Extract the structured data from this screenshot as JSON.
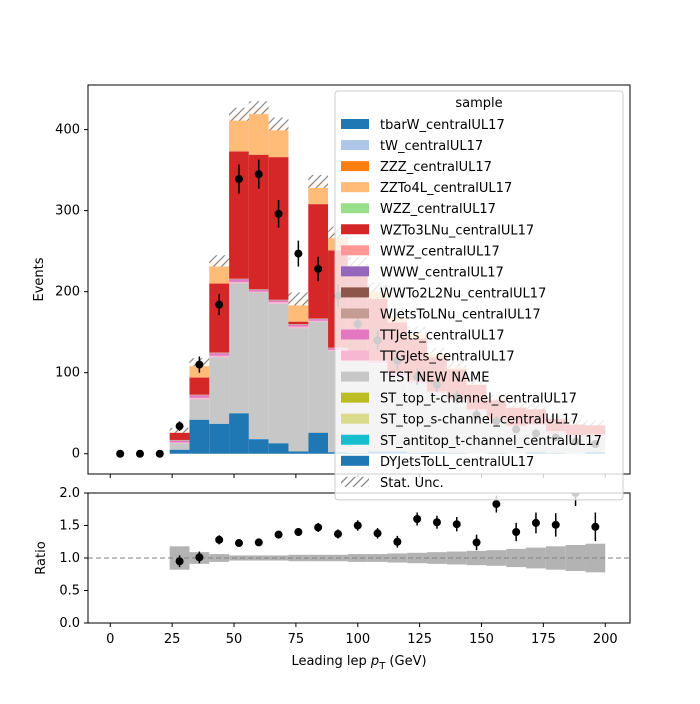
{
  "chart_data": [
    {
      "type": "bar",
      "stacked": true,
      "bin_edges": [
        0,
        8,
        16,
        24,
        32,
        40,
        48,
        56,
        64,
        72,
        80,
        88,
        96,
        104,
        112,
        120,
        128,
        136,
        144,
        152,
        160,
        168,
        176,
        184,
        192,
        200
      ],
      "xlim": [
        -9,
        210
      ],
      "ylim": [
        -25,
        455
      ],
      "ylabel": "Events",
      "yticks": [
        0,
        100,
        200,
        300,
        400
      ],
      "legend": {
        "title": "sample",
        "position": "top-right",
        "entries": [
          {
            "name": "tbarW_centralUL17",
            "color": "#1f77b4"
          },
          {
            "name": "tW_centralUL17",
            "color": "#aec7e8"
          },
          {
            "name": "ZZZ_centralUL17",
            "color": "#ff7f0e"
          },
          {
            "name": "ZZTo4L_centralUL17",
            "color": "#ffbb78"
          },
          {
            "name": "WZZ_centralUL17",
            "color": "#98df8a"
          },
          {
            "name": "WZTo3LNu_centralUL17",
            "color": "#d62728"
          },
          {
            "name": "WWZ_centralUL17",
            "color": "#ff9896"
          },
          {
            "name": "WWW_centralUL17",
            "color": "#9467bd"
          },
          {
            "name": "WWTo2L2Nu_centralUL17",
            "color": "#8c564b"
          },
          {
            "name": "WJetsToLNu_centralUL17",
            "color": "#c49c94"
          },
          {
            "name": "TTJets_centralUL17",
            "color": "#e377c2"
          },
          {
            "name": "TTGJets_centralUL17",
            "color": "#f7b6d2"
          },
          {
            "name": "TEST NEW NAME",
            "color": "#c7c7c7"
          },
          {
            "name": "ST_top_t-channel_centralUL17",
            "color": "#bcbd22"
          },
          {
            "name": "ST_top_s-channel_centralUL17",
            "color": "#dbdb8d"
          },
          {
            "name": "ST_antitop_t-channel_centralUL17",
            "color": "#17becf"
          },
          {
            "name": "DYJetsToLL_centralUL17",
            "color": "#1f77b4"
          },
          {
            "name": "Stat. Unc.",
            "color": "#808080",
            "hatch": true
          }
        ]
      },
      "stack_series": [
        {
          "name": "DYJetsToLL_centralUL17",
          "color": "#1f77b4",
          "values": [
            0,
            0,
            0,
            5,
            42,
            37,
            50,
            18,
            13,
            3,
            26,
            2,
            1,
            3,
            3,
            1,
            2,
            1,
            0,
            1,
            0,
            2,
            1,
            0,
            2
          ]
        },
        {
          "name": "TEST NEW NAME",
          "color": "#c7c7c7",
          "values": [
            0,
            0,
            0,
            8,
            25,
            82,
            160,
            181,
            172,
            152,
            137,
            125,
            118,
            108,
            93,
            85,
            72,
            64,
            52,
            38,
            32,
            32,
            24,
            20,
            19
          ]
        },
        {
          "name": "TTGJets_centralUL17",
          "color": "#f7b6d2",
          "values": [
            0,
            0,
            0,
            1,
            2,
            2,
            2,
            1,
            2,
            2,
            1,
            1,
            1,
            1,
            1,
            1,
            1,
            1,
            1,
            1,
            1,
            1,
            1,
            1,
            1
          ]
        },
        {
          "name": "TTJets_centralUL17",
          "color": "#e377c2",
          "values": [
            0,
            0,
            0,
            2,
            3,
            3,
            3,
            2,
            2,
            2,
            2,
            2,
            2,
            2,
            2,
            2,
            1,
            1,
            1,
            1,
            1,
            1,
            1,
            1,
            1
          ]
        },
        {
          "name": "WJetsToLNu_centralUL17",
          "color": "#c49c94",
          "values": [
            0,
            0,
            0,
            1,
            1,
            1,
            1,
            1,
            1,
            1,
            1,
            1,
            1,
            1,
            1,
            1,
            1,
            1,
            1,
            1,
            1,
            1,
            1,
            1,
            1
          ]
        },
        {
          "name": "WZTo3LNu_centralUL17",
          "color": "#d62728",
          "values": [
            0,
            0,
            0,
            9,
            21,
            85,
            157,
            166,
            176,
            3,
            141,
            120,
            96,
            76,
            62,
            52,
            42,
            36,
            30,
            24,
            22,
            18,
            16,
            14,
            12
          ]
        },
        {
          "name": "ZZTo4L_centralUL17",
          "color": "#ffbb78",
          "values": [
            0,
            0,
            0,
            3,
            19,
            28,
            46,
            58,
            41,
            28,
            28,
            22,
            18,
            15,
            12,
            10,
            8,
            6,
            5,
            4,
            3,
            3,
            2,
            2,
            2
          ]
        }
      ],
      "stat_unc_half_width": [
        0,
        0,
        0,
        3,
        5,
        7,
        8,
        8,
        8,
        8,
        8,
        7,
        6,
        6,
        5,
        5,
        4,
        4,
        4,
        3,
        3,
        3,
        3,
        3,
        3
      ],
      "data_points": {
        "x": [
          4,
          12,
          20,
          28,
          36,
          44,
          52,
          60,
          68,
          76,
          84,
          92,
          100,
          108,
          116,
          124,
          132,
          140,
          148,
          156,
          164,
          172,
          180,
          188,
          196
        ],
        "y": [
          0,
          0,
          0,
          34,
          110,
          184,
          339,
          345,
          296,
          247,
          228,
          195,
          160,
          140,
          115,
          95,
          85,
          70,
          48,
          40,
          30,
          25,
          20,
          15,
          12
        ],
        "err": [
          0,
          0,
          0,
          6,
          10,
          13,
          18,
          18,
          17,
          16,
          15,
          14,
          13,
          12,
          11,
          10,
          9,
          8,
          7,
          6,
          5,
          5,
          4,
          4,
          3
        ]
      }
    },
    {
      "type": "scatter",
      "xlabel_prefix": "Leading lep ",
      "xlabel_symbol": "p",
      "xlabel_subscript": "T",
      "xlabel_suffix": " (GeV)",
      "ylabel": "Ratio",
      "xlim": [
        -9,
        210
      ],
      "ylim": [
        0.0,
        2.0
      ],
      "xticks": [
        0,
        25,
        50,
        75,
        100,
        125,
        150,
        175,
        200
      ],
      "yticks": [
        "0.0",
        "0.5",
        "1.0",
        "1.5",
        "2.0"
      ],
      "reference_line": 1.0,
      "ratio_points": {
        "x": [
          28,
          36,
          44,
          52,
          60,
          68,
          76,
          84,
          92,
          100,
          108,
          116,
          124,
          132,
          140,
          148,
          156,
          164,
          172,
          180,
          188,
          196
        ],
        "y": [
          0.95,
          1.01,
          1.28,
          1.23,
          1.24,
          1.36,
          1.4,
          1.47,
          1.37,
          1.5,
          1.38,
          1.25,
          1.6,
          1.55,
          1.52,
          1.24,
          1.83,
          1.4,
          1.54,
          1.51,
          2.0,
          1.48
        ],
        "err": [
          0.09,
          0.09,
          0.07,
          0.05,
          0.05,
          0.06,
          0.06,
          0.07,
          0.07,
          0.08,
          0.08,
          0.09,
          0.1,
          0.1,
          0.11,
          0.12,
          0.13,
          0.14,
          0.16,
          0.18,
          0.2,
          0.22
        ]
      },
      "unc_band_half_width": [
        0,
        0,
        0,
        0.18,
        0.09,
        0.06,
        0.04,
        0.04,
        0.04,
        0.05,
        0.05,
        0.05,
        0.06,
        0.06,
        0.07,
        0.08,
        0.09,
        0.1,
        0.11,
        0.12,
        0.14,
        0.16,
        0.18,
        0.2,
        0.22
      ]
    }
  ]
}
